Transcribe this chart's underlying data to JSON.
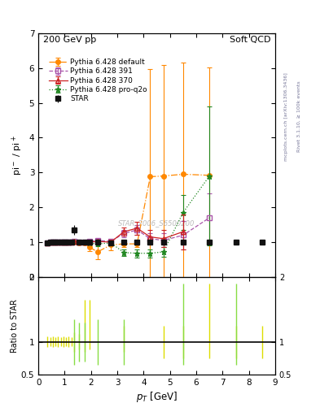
{
  "title_left": "200 GeV pp",
  "title_right": "Soft QCD",
  "ylabel_main": "pi$^-$ / pi$^+$",
  "ylabel_ratio": "Ratio to STAR",
  "xlabel": "$p_T$ [GeV]",
  "ylim_main": [
    0,
    7
  ],
  "ylim_ratio": [
    0.5,
    2
  ],
  "xlim": [
    0,
    9
  ],
  "watermark": "STAR_2006_S6500200",
  "right_label1": "mcplots.cern.ch [arXiv:1306.3436]",
  "right_label2": "Rivet 3.1.10, ≥ 100k events",
  "star_x": [
    0.35,
    0.45,
    0.55,
    0.65,
    0.75,
    0.85,
    0.95,
    1.05,
    1.15,
    1.25,
    1.35,
    1.55,
    1.75,
    1.95,
    2.25,
    2.75,
    3.25,
    3.75,
    4.25,
    4.75,
    5.5,
    6.5,
    7.5,
    8.5
  ],
  "star_y": [
    0.985,
    0.99,
    0.99,
    1.0,
    1.0,
    1.0,
    1.0,
    1.0,
    1.0,
    1.01,
    1.35,
    1.0,
    1.01,
    1.0,
    1.0,
    0.98,
    1.0,
    1.0,
    1.0,
    1.0,
    1.0,
    1.0,
    1.0,
    1.0
  ],
  "star_yerr": [
    0.02,
    0.02,
    0.02,
    0.02,
    0.02,
    0.02,
    0.02,
    0.02,
    0.02,
    0.03,
    0.15,
    0.03,
    0.03,
    0.04,
    0.05,
    0.05,
    0.06,
    0.07,
    0.08,
    0.1,
    0.05,
    0.04,
    0.05,
    0.06
  ],
  "p370_x": [
    0.35,
    0.45,
    0.55,
    0.65,
    0.75,
    0.85,
    0.95,
    1.05,
    1.15,
    1.25,
    1.35,
    1.55,
    1.75,
    1.95,
    2.25,
    2.75,
    3.25,
    3.75,
    4.25,
    4.75,
    5.5
  ],
  "p370_y": [
    0.985,
    0.99,
    0.99,
    0.99,
    0.99,
    1.0,
    1.0,
    1.0,
    1.0,
    1.01,
    1.02,
    1.0,
    1.01,
    1.0,
    1.02,
    1.0,
    1.3,
    1.4,
    1.15,
    1.1,
    1.3
  ],
  "p370_yerr": [
    0.01,
    0.01,
    0.01,
    0.01,
    0.01,
    0.01,
    0.01,
    0.01,
    0.01,
    0.02,
    0.02,
    0.02,
    0.03,
    0.03,
    0.05,
    0.07,
    0.12,
    0.18,
    0.2,
    0.25,
    0.5
  ],
  "p391_x": [
    0.35,
    0.45,
    0.55,
    0.65,
    0.75,
    0.85,
    0.95,
    1.05,
    1.15,
    1.25,
    1.35,
    1.55,
    1.75,
    1.95,
    2.25,
    2.75,
    3.25,
    3.75,
    4.25,
    4.75,
    5.5,
    6.5
  ],
  "p391_y": [
    0.985,
    0.99,
    0.99,
    0.99,
    0.99,
    1.0,
    1.0,
    1.0,
    1.0,
    1.01,
    1.02,
    1.0,
    1.01,
    1.02,
    1.05,
    1.02,
    1.25,
    1.35,
    1.1,
    1.05,
    1.2,
    1.7
  ],
  "p391_yerr": [
    0.01,
    0.01,
    0.01,
    0.01,
    0.01,
    0.01,
    0.01,
    0.01,
    0.01,
    0.02,
    0.02,
    0.02,
    0.03,
    0.03,
    0.05,
    0.07,
    0.1,
    0.15,
    0.15,
    0.2,
    0.4,
    0.7
  ],
  "pdef_x": [
    0.35,
    0.45,
    0.55,
    0.65,
    0.75,
    0.85,
    0.95,
    1.05,
    1.15,
    1.25,
    1.35,
    1.55,
    1.75,
    1.95,
    2.25,
    2.75,
    3.25,
    3.75,
    4.25,
    4.75,
    5.5,
    6.5
  ],
  "pdef_y": [
    0.985,
    0.99,
    0.99,
    0.99,
    0.99,
    0.99,
    0.99,
    0.99,
    0.99,
    0.99,
    1.0,
    0.98,
    0.97,
    0.85,
    0.72,
    0.92,
    0.95,
    0.95,
    2.88,
    2.9,
    2.95,
    2.92
  ],
  "pdef_yerr": [
    0.01,
    0.01,
    0.01,
    0.01,
    0.01,
    0.01,
    0.01,
    0.01,
    0.01,
    0.01,
    0.01,
    0.02,
    0.04,
    0.1,
    0.2,
    0.15,
    0.1,
    0.1,
    3.1,
    3.2,
    3.2,
    3.1
  ],
  "pq2o_x": [
    0.35,
    0.45,
    0.55,
    0.65,
    0.75,
    0.85,
    0.95,
    1.05,
    1.15,
    1.25,
    1.35,
    1.55,
    1.75,
    1.95,
    2.25,
    2.75,
    3.25,
    3.75,
    4.25,
    4.75,
    5.5,
    6.5
  ],
  "pq2o_y": [
    0.985,
    0.99,
    0.99,
    0.99,
    0.99,
    1.0,
    1.0,
    1.0,
    1.0,
    1.01,
    1.02,
    1.0,
    1.01,
    0.97,
    0.95,
    0.98,
    0.7,
    0.68,
    0.68,
    0.72,
    1.85,
    2.9
  ],
  "pq2o_yerr": [
    0.01,
    0.01,
    0.01,
    0.01,
    0.01,
    0.01,
    0.01,
    0.01,
    0.01,
    0.02,
    0.02,
    0.02,
    0.03,
    0.04,
    0.06,
    0.08,
    0.1,
    0.12,
    0.12,
    0.15,
    0.5,
    2.0
  ],
  "color_star": "#111111",
  "color_p370": "#cc2222",
  "color_p391": "#aa55aa",
  "color_pdef": "#ff8800",
  "color_pq2o": "#228822",
  "ratio_yellow_x": [
    0.35,
    0.45,
    0.55,
    0.65,
    0.75,
    0.85,
    0.95,
    1.05,
    1.15,
    1.25,
    1.35,
    1.55,
    1.75,
    1.95,
    3.25,
    4.75,
    5.5,
    6.5,
    7.5,
    8.5
  ],
  "ratio_yellow_lo": [
    0.92,
    0.93,
    0.92,
    0.93,
    0.92,
    0.93,
    0.92,
    0.93,
    0.92,
    0.93,
    0.85,
    0.88,
    0.85,
    0.88,
    0.85,
    0.75,
    0.75,
    0.75,
    0.75,
    0.75
  ],
  "ratio_yellow_hi": [
    1.08,
    1.07,
    1.08,
    1.07,
    1.08,
    1.07,
    1.08,
    1.07,
    1.08,
    1.07,
    1.15,
    1.12,
    1.65,
    1.65,
    1.25,
    1.25,
    1.25,
    1.9,
    1.25,
    1.25
  ],
  "ratio_green_x": [
    1.35,
    1.55,
    1.75,
    2.25,
    3.25,
    5.5,
    7.5
  ],
  "ratio_green_lo": [
    0.65,
    0.7,
    0.7,
    0.65,
    0.65,
    0.65,
    0.65
  ],
  "ratio_green_hi": [
    1.35,
    1.3,
    1.3,
    1.35,
    1.35,
    1.9,
    1.9
  ]
}
